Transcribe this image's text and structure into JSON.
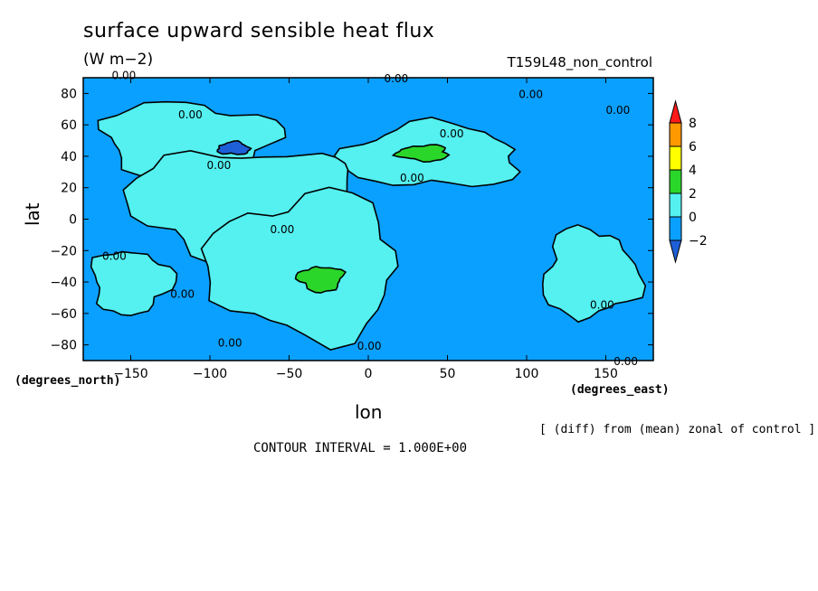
{
  "chart_data": {
    "type": "heatmap",
    "title": "surface upward sensible heat flux",
    "units": "(W m−2)",
    "run_id": "T159L48_non_control",
    "xlabel": "lon",
    "ylabel": "lat",
    "x_units_label": "(degrees_east)",
    "y_units_label": "(degrees_north)",
    "xlim": [
      -180,
      180
    ],
    "ylim": [
      -90,
      90
    ],
    "x_ticks": [
      -150,
      -100,
      -50,
      0,
      50,
      100,
      150
    ],
    "y_ticks": [
      80,
      60,
      40,
      20,
      0,
      -20,
      -40,
      -60,
      -80
    ],
    "contour_interval": "CONTOUR INTERVAL = 1.000E+00",
    "note": "[ (diff) from (mean) zonal of control ]",
    "contour_label": "0.00",
    "colorbar": {
      "levels": [
        -2,
        0,
        2,
        4,
        6,
        8
      ],
      "tick_labels": [
        "−2",
        "0",
        "2",
        "4",
        "6",
        "8"
      ],
      "colors": [
        "#1e5fd8",
        "#0aa0ff",
        "#55f0f0",
        "#2bd62b",
        "#ffff00",
        "#ff9900",
        "#ff1a1a"
      ]
    },
    "regions": [
      {
        "level": "-1..0",
        "lon": [
          -180,
          180
        ],
        "lat": [
          -90,
          90
        ]
      },
      {
        "level": "0..2",
        "center": [
          -115,
          52
        ],
        "radius": [
          55,
          22
        ]
      },
      {
        "level": "0..2",
        "center": [
          -80,
          10
        ],
        "radius": [
          70,
          35
        ]
      },
      {
        "level": "0..2",
        "center": [
          -40,
          -30
        ],
        "radius": [
          60,
          45
        ]
      },
      {
        "level": "0..2",
        "center": [
          40,
          40
        ],
        "radius": [
          55,
          20
        ]
      },
      {
        "level": "0..2",
        "center": [
          140,
          -35
        ],
        "radius": [
          30,
          28
        ]
      },
      {
        "level": "0..2",
        "center": [
          -150,
          -40
        ],
        "radius": [
          25,
          20
        ]
      },
      {
        "level": "2..4",
        "center": [
          -30,
          -38
        ],
        "radius": [
          14,
          8
        ]
      },
      {
        "level": "2..4",
        "center": [
          35,
          42
        ],
        "radius": [
          16,
          5
        ]
      },
      {
        "level": "-2..-1",
        "center": [
          -85,
          45
        ],
        "radius": [
          10,
          4
        ]
      }
    ],
    "contour_label_positions": [
      [
        -162,
        89
      ],
      [
        10,
        87
      ],
      [
        95,
        77
      ],
      [
        150,
        67
      ],
      [
        -120,
        64
      ],
      [
        45,
        52
      ],
      [
        -102,
        32
      ],
      [
        20,
        24
      ],
      [
        -62,
        -9
      ],
      [
        -168,
        -26
      ],
      [
        -125,
        -50
      ],
      [
        140,
        -57
      ],
      [
        -95,
        -81
      ],
      [
        -7,
        -83
      ],
      [
        155,
        -93
      ]
    ]
  }
}
